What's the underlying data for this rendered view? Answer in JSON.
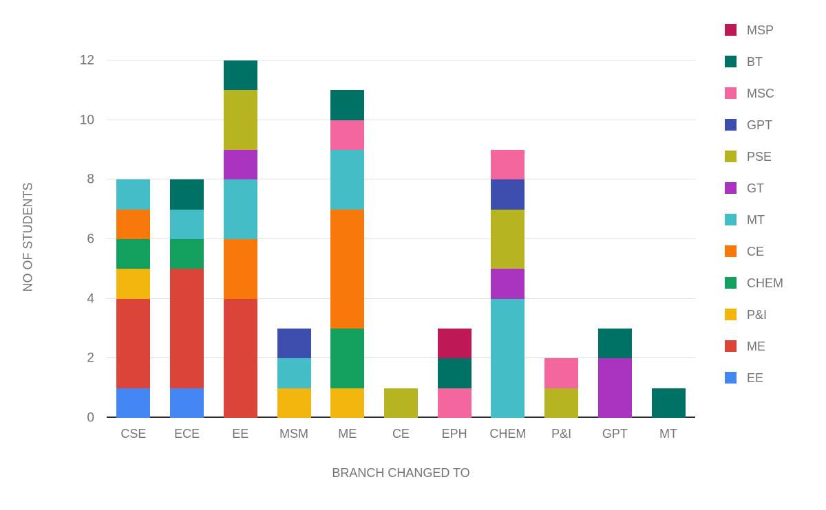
{
  "chart_data": {
    "type": "bar",
    "stacked": true,
    "xlabel": "BRANCH CHANGED TO",
    "ylabel": "NO OF STUDENTS",
    "categories": [
      "CSE",
      "ECE",
      "EE",
      "MSM",
      "ME",
      "CE",
      "EPH",
      "CHEM",
      "P&I",
      "GPT",
      "MT"
    ],
    "yticks": [
      0,
      2,
      4,
      6,
      8,
      10,
      12
    ],
    "ylim": [
      0,
      12
    ],
    "grid": true,
    "legend_position": "right",
    "series": [
      {
        "name": "EE",
        "color": "#4486F4",
        "values": [
          1,
          1,
          0,
          0,
          0,
          0,
          0,
          0,
          0,
          0,
          0
        ]
      },
      {
        "name": "ME",
        "color": "#DB4539",
        "values": [
          3,
          4,
          4,
          0,
          0,
          0,
          0,
          0,
          0,
          0,
          0
        ]
      },
      {
        "name": "P&I",
        "color": "#F2B50E",
        "values": [
          1,
          0,
          0,
          1,
          1,
          0,
          0,
          0,
          0,
          0,
          0
        ]
      },
      {
        "name": "CHEM",
        "color": "#13A05E",
        "values": [
          1,
          1,
          0,
          0,
          2,
          0,
          0,
          0,
          0,
          0,
          0
        ]
      },
      {
        "name": "CE",
        "color": "#F8790B",
        "values": [
          1,
          0,
          2,
          0,
          4,
          0,
          0,
          0,
          0,
          0,
          0
        ]
      },
      {
        "name": "MT",
        "color": "#45BDC6",
        "values": [
          1,
          1,
          2,
          1,
          2,
          0,
          0,
          4,
          0,
          0,
          0
        ]
      },
      {
        "name": "GT",
        "color": "#A834C0",
        "values": [
          0,
          0,
          1,
          0,
          0,
          0,
          0,
          1,
          0,
          2,
          0
        ]
      },
      {
        "name": "PSE",
        "color": "#B6B420",
        "values": [
          0,
          0,
          2,
          0,
          0,
          1,
          0,
          2,
          1,
          0,
          0
        ]
      },
      {
        "name": "GPT",
        "color": "#3D4EAE",
        "values": [
          0,
          0,
          0,
          1,
          0,
          0,
          0,
          1,
          0,
          0,
          0
        ]
      },
      {
        "name": "MSC",
        "color": "#F4679E",
        "values": [
          0,
          0,
          0,
          0,
          1,
          0,
          1,
          1,
          1,
          0,
          0
        ]
      },
      {
        "name": "BT",
        "color": "#007265",
        "values": [
          0,
          1,
          1,
          0,
          1,
          0,
          1,
          0,
          0,
          1,
          1
        ]
      },
      {
        "name": "MSP",
        "color": "#BE1857",
        "values": [
          0,
          0,
          0,
          0,
          0,
          0,
          1,
          0,
          0,
          0,
          0
        ]
      }
    ],
    "legend_order": [
      "MSP",
      "BT",
      "MSC",
      "GPT",
      "PSE",
      "GT",
      "MT",
      "CE",
      "CHEM",
      "P&I",
      "ME",
      "EE"
    ]
  },
  "style": {
    "axis_text_color": "#757575",
    "gridline_color": "#e0e0e0",
    "baseline_color": "#2a2a2a",
    "background": "#ffffff"
  }
}
